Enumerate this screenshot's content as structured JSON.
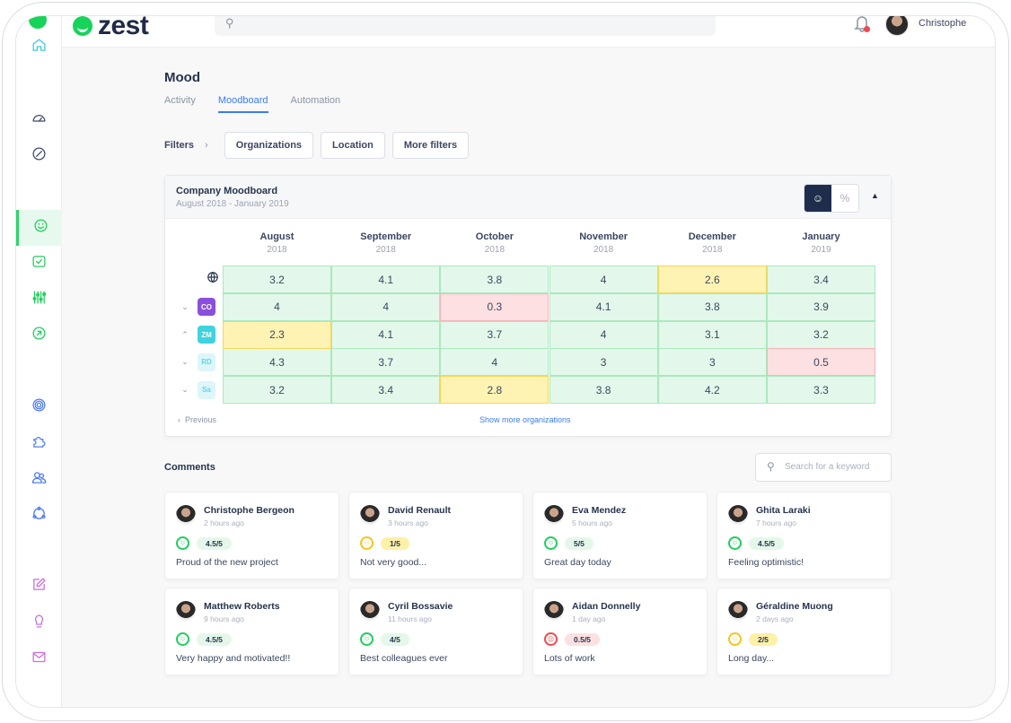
{
  "app": {
    "logo_text": "zest",
    "search_icon": "search-icon",
    "user_name": "Christophe",
    "notification_icon": "bell-icon"
  },
  "sidebar": {
    "items": [
      {
        "name": "home",
        "icon": "home-icon",
        "color": "#3ec8e6"
      },
      {
        "name": "dashboard",
        "icon": "gauge-icon",
        "color": "#3c4a6b"
      },
      {
        "name": "explore",
        "icon": "compass-icon",
        "color": "#3c4a6b"
      },
      {
        "name": "mood",
        "icon": "smile-icon",
        "color": "#1fcf5c",
        "active": true
      },
      {
        "name": "tasks",
        "icon": "check-square-icon",
        "color": "#1fcf5c"
      },
      {
        "name": "settings",
        "icon": "sliders-icon",
        "color": "#1fcf5c"
      },
      {
        "name": "growth",
        "icon": "arrow-circle-icon",
        "color": "#1fcf5c"
      },
      {
        "name": "goals",
        "icon": "target-icon",
        "color": "#4f7cf6"
      },
      {
        "name": "integrations",
        "icon": "puzzle-icon",
        "color": "#4f7cf6"
      },
      {
        "name": "team",
        "icon": "users-icon",
        "color": "#4f7cf6"
      },
      {
        "name": "network",
        "icon": "network-icon",
        "color": "#4f7cf6"
      },
      {
        "name": "notes",
        "icon": "edit-icon",
        "color": "#c96ee0"
      },
      {
        "name": "ideas",
        "icon": "bulb-icon",
        "color": "#c96ee0"
      },
      {
        "name": "messages",
        "icon": "mail-icon",
        "color": "#c96ee0"
      }
    ]
  },
  "page": {
    "title": "Mood",
    "tabs": [
      {
        "label": "Activity"
      },
      {
        "label": "Moodboard",
        "active": true
      },
      {
        "label": "Automation"
      }
    ]
  },
  "filters": {
    "label": "Filters",
    "buttons": [
      "Organizations",
      "Location",
      "More filters"
    ]
  },
  "moodboard": {
    "title": "Company Moodboard",
    "subtitle": "August 2018 - January 2019",
    "toggle": {
      "mood_icon": "smile-icon",
      "percent_label": "%",
      "selected": "mood"
    },
    "columns": [
      {
        "month": "August",
        "year": "2018"
      },
      {
        "month": "September",
        "year": "2018"
      },
      {
        "month": "October",
        "year": "2018"
      },
      {
        "month": "November",
        "year": "2018"
      },
      {
        "month": "December",
        "year": "2018"
      },
      {
        "month": "January",
        "year": "2019"
      }
    ],
    "rows": [
      {
        "label": "",
        "icon": "globe-icon",
        "values": [
          "3.2",
          "4.1",
          "3.8",
          "4",
          "2.6",
          "3.4"
        ],
        "status": [
          "g",
          "g",
          "g",
          "g",
          "y",
          "g"
        ]
      },
      {
        "label": "CO",
        "chevron": "down",
        "badge_bg": "#8a4fdc",
        "badge_fg": "#ffffff",
        "values": [
          "4",
          "4",
          "0.3",
          "4.1",
          "3.8",
          "3.9"
        ],
        "status": [
          "g",
          "g",
          "r",
          "g",
          "g",
          "g"
        ]
      },
      {
        "label": "ZM",
        "chevron": "up",
        "badge_bg": "#3dd3df",
        "badge_fg": "#ffffff",
        "values": [
          "2.3",
          "4.1",
          "3.7",
          "4",
          "3.1",
          "3.2"
        ],
        "status": [
          "y",
          "g",
          "g",
          "g",
          "g",
          "g"
        ]
      },
      {
        "label": "RD",
        "chevron": "down",
        "badge_bg": "#dcf6fa",
        "badge_fg": "#5fd6e6",
        "values": [
          "4.3",
          "3.7",
          "4",
          "3",
          "3",
          "0.5"
        ],
        "status": [
          "g",
          "g",
          "g",
          "g",
          "g",
          "r"
        ]
      },
      {
        "label": "Sa",
        "chevron": "down",
        "badge_bg": "#dcf6fa",
        "badge_fg": "#5fd6e6",
        "values": [
          "3.2",
          "3.4",
          "2.8",
          "3.8",
          "4.2",
          "3.3"
        ],
        "status": [
          "g",
          "g",
          "y",
          "g",
          "g",
          "g"
        ]
      }
    ],
    "status_colors": {
      "g": {
        "bg": "#e3f8ea",
        "border": "#a9e9be"
      },
      "y": {
        "bg": "#fff3b3",
        "border": "#f3d75a"
      },
      "r": {
        "bg": "#fde0e1",
        "border": "#f5b4b7"
      }
    },
    "previous_label": "Previous",
    "show_more_label": "Show more organizations"
  },
  "comments": {
    "title": "Comments",
    "search_placeholder": "Search for a keyword",
    "items": [
      {
        "name": "Christophe Bergeon",
        "time": "2 hours ago",
        "score": "4.5/5",
        "mood": "g",
        "text": "Proud of the new project"
      },
      {
        "name": "David Renault",
        "time": "3 hours ago",
        "score": "1/5",
        "mood": "y",
        "text": "Not very good..."
      },
      {
        "name": "Eva Mendez",
        "time": "5 hours ago",
        "score": "5/5",
        "mood": "g",
        "text": "Great day today"
      },
      {
        "name": "Ghita Laraki",
        "time": "7 hours ago",
        "score": "4.5/5",
        "mood": "g",
        "text": "Feeling optimistic!"
      },
      {
        "name": "Matthew Roberts",
        "time": "9 hours ago",
        "score": "4.5/5",
        "mood": "g",
        "text": "Very happy and motivated!!"
      },
      {
        "name": "Cyril Bossavie",
        "time": "11 hours ago",
        "score": "4/5",
        "mood": "g",
        "text": "Best colleagues ever"
      },
      {
        "name": "Aidan Donnelly",
        "time": "1 day ago",
        "score": "0.5/5",
        "mood": "r",
        "text": "Lots of work"
      },
      {
        "name": "Géraldine Muong",
        "time": "2 days ago",
        "score": "2/5",
        "mood": "y",
        "text": "Long day..."
      }
    ]
  }
}
